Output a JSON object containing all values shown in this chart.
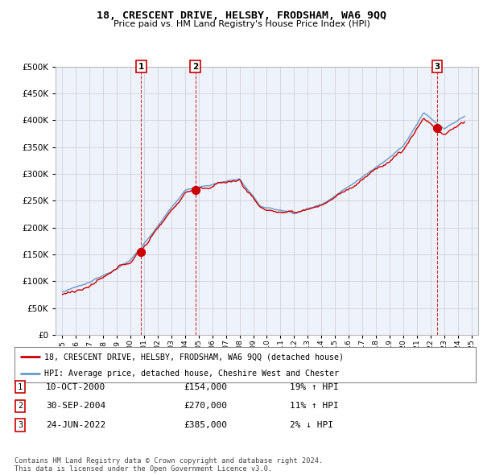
{
  "title": "18, CRESCENT DRIVE, HELSBY, FRODSHAM, WA6 9QQ",
  "subtitle": "Price paid vs. HM Land Registry's House Price Index (HPI)",
  "legend_line1": "18, CRESCENT DRIVE, HELSBY, FRODSHAM, WA6 9QQ (detached house)",
  "legend_line2": "HPI: Average price, detached house, Cheshire West and Chester",
  "transactions": [
    {
      "num": 1,
      "date": "10-OCT-2000",
      "price": 154000,
      "pct": "19%",
      "dir": "↑"
    },
    {
      "num": 2,
      "date": "30-SEP-2004",
      "price": 270000,
      "pct": "11%",
      "dir": "↑"
    },
    {
      "num": 3,
      "date": "24-JUN-2022",
      "price": 385000,
      "pct": "2%",
      "dir": "↓"
    }
  ],
  "footnote": "Contains HM Land Registry data © Crown copyright and database right 2024.\nThis data is licensed under the Open Government Licence v3.0.",
  "transaction_years": [
    2000.78,
    2004.75,
    2022.48
  ],
  "transaction_prices": [
    154000,
    270000,
    385000
  ],
  "red_line_color": "#cc0000",
  "blue_line_color": "#6699cc",
  "fill_color": "#dce9f7",
  "vline_color": "#cc0000",
  "grid_color": "#cccccc",
  "background_color": "#ffffff",
  "plot_bg_color": "#eef2fb",
  "ylim": [
    0,
    500000
  ],
  "yticks": [
    0,
    50000,
    100000,
    150000,
    200000,
    250000,
    300000,
    350000,
    400000,
    450000,
    500000
  ],
  "xlim_start": 1994.5,
  "xlim_end": 2025.5,
  "xtick_years": [
    1995,
    1996,
    1997,
    1998,
    1999,
    2000,
    2001,
    2002,
    2003,
    2004,
    2005,
    2006,
    2007,
    2008,
    2009,
    2010,
    2011,
    2012,
    2013,
    2014,
    2015,
    2016,
    2017,
    2018,
    2019,
    2020,
    2021,
    2022,
    2023,
    2024,
    2025
  ]
}
